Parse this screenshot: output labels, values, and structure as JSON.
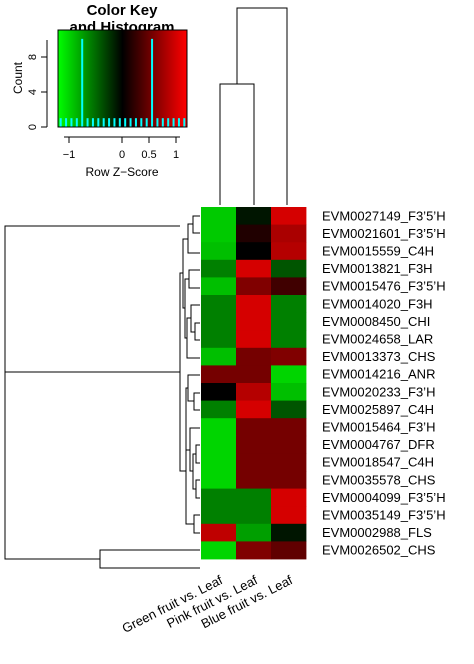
{
  "color_key": {
    "title_line1": "Color Key",
    "title_line2": "and Histogram",
    "y_label": "Count",
    "x_label": "Row Z−Score",
    "y_ticks": [
      "0",
      "4",
      "8"
    ],
    "x_ticks": [
      "−1",
      "0",
      "0.5",
      "1"
    ],
    "gradient_colors": [
      "#00ff00",
      "#000000",
      "#ff0000"
    ],
    "histogram_color": "#00ffff",
    "histogram": {
      "bin_centers": [
        -1.15,
        -1.05,
        -0.95,
        -0.85,
        -0.75,
        -0.65,
        -0.55,
        -0.45,
        -0.35,
        -0.25,
        -0.15,
        -0.05,
        0.05,
        0.15,
        0.25,
        0.35,
        0.45,
        0.55,
        0.65,
        0.75,
        0.85,
        0.95,
        1.05,
        1.15
      ],
      "counts": [
        1,
        1,
        1,
        1,
        10,
        1,
        1,
        1,
        1,
        1,
        1,
        1,
        1,
        1,
        1,
        1,
        1,
        10,
        1,
        1,
        1,
        1,
        1,
        1
      ],
      "xlim": [
        -1.2,
        1.2
      ],
      "ylim": [
        0,
        11
      ]
    }
  },
  "chart_data": {
    "type": "heatmap",
    "columns": [
      "Green fruit vs. Leaf",
      "Pink fruit vs. Leaf",
      "Blue fruit vs. Leaf"
    ],
    "rows": [
      "EVM0027149_F3’5’H",
      "EVM0021601_F3’5’H",
      "EVM0015559_C4H",
      "EVM0013821_F3H",
      "EVM0015476_F3’5’H",
      "EVM0014020_F3H",
      "EVM0008450_CHI",
      "EVM0024658_LAR",
      "EVM0013373_CHS",
      "EVM0014216_ANR",
      "EVM0020233_F3’H",
      "EVM0025897_C4H",
      "EVM0015464_F3’H",
      "EVM0004767_DFR",
      "EVM0018547_C4H",
      "EVM0035578_CHS",
      "EVM0004099_F3’5’H",
      "EVM0035149_F3’5’H",
      "EVM0002988_FLS",
      "EVM0026502_CHS"
    ],
    "zscores": [
      [
        -0.95,
        -0.1,
        1.0
      ],
      [
        -0.95,
        0.15,
        0.8
      ],
      [
        -0.9,
        0.0,
        0.85
      ],
      [
        -0.6,
        1.0,
        -0.4
      ],
      [
        -0.9,
        0.6,
        0.3
      ],
      [
        -0.6,
        1.0,
        -0.6
      ],
      [
        -0.6,
        1.0,
        -0.6
      ],
      [
        -0.6,
        1.0,
        -0.6
      ],
      [
        -0.9,
        0.55,
        0.6
      ],
      [
        0.55,
        0.55,
        -1.0
      ],
      [
        0.0,
        0.85,
        -0.9
      ],
      [
        -0.6,
        1.0,
        -0.4
      ],
      [
        -1.0,
        0.55,
        0.55
      ],
      [
        -1.0,
        0.55,
        0.55
      ],
      [
        -1.0,
        0.55,
        0.55
      ],
      [
        -1.0,
        0.55,
        0.55
      ],
      [
        -0.6,
        -0.6,
        1.0
      ],
      [
        -0.6,
        -0.6,
        1.0
      ],
      [
        0.9,
        -0.75,
        -0.1
      ],
      [
        -1.0,
        0.6,
        0.45
      ]
    ],
    "zlim": [
      -1.2,
      1.2
    ]
  }
}
